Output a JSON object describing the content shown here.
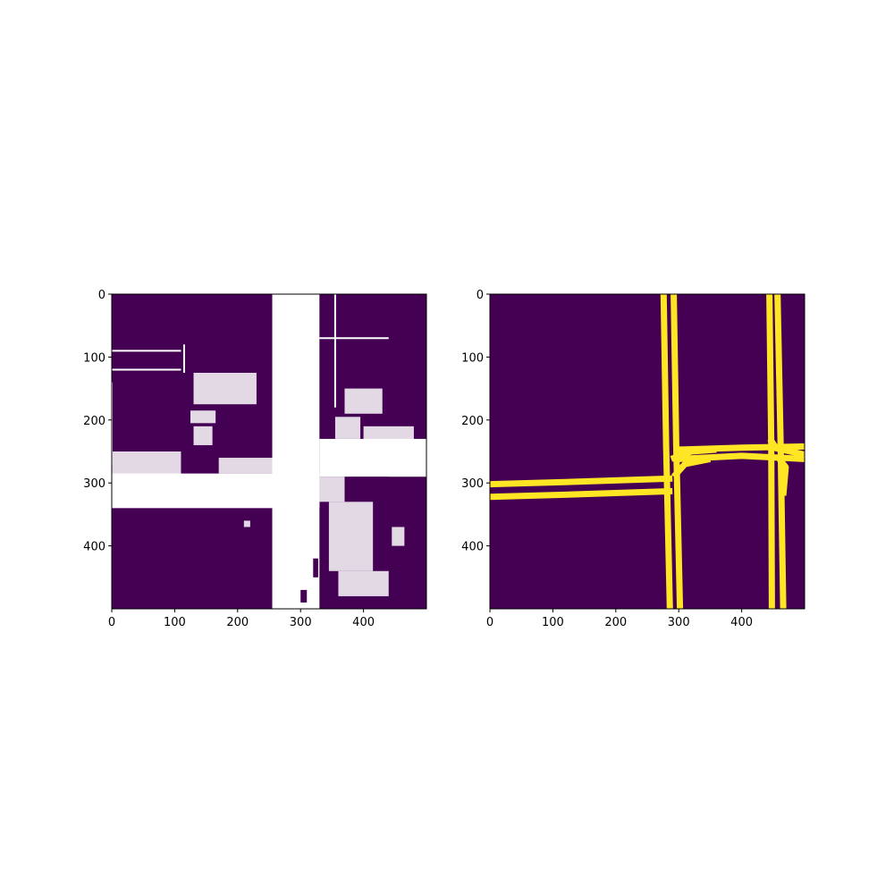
{
  "figure": {
    "background": "#ffffff",
    "colors": {
      "viridis_low": "#440154",
      "viridis_high": "#fde725",
      "mask_white": "#ffffff",
      "axis": "#000000"
    }
  },
  "chart_data": [
    {
      "type": "heatmap",
      "subtype": "binary image (imshow)",
      "title": "",
      "xlabel": "",
      "ylabel": "",
      "image_size": [
        500,
        500
      ],
      "xlim": [
        0,
        500
      ],
      "ylim": [
        500,
        0
      ],
      "y_axis_inverted": true,
      "x_ticks": [
        0,
        100,
        200,
        300,
        400
      ],
      "y_ticks": [
        0,
        100,
        200,
        300,
        400
      ],
      "grid": false,
      "colormap": [
        "#440154",
        "#ffffff"
      ],
      "description_of_regions": "white = drivable surface mask, purple = background",
      "regions": {
        "main_vertical_road": {
          "x": [
            255,
            330
          ],
          "y": [
            0,
            500
          ]
        },
        "left_horizontal_road": {
          "x": [
            0,
            330
          ],
          "y": [
            285,
            340
          ]
        },
        "right_horizontal_band": {
          "x": [
            330,
            500
          ],
          "y": [
            230,
            290
          ]
        },
        "left_upper_block": {
          "x": [
            0,
            110
          ],
          "y": [
            125,
            270
          ]
        },
        "lower_left_block": {
          "x": [
            0,
            255
          ],
          "y": [
            340,
            500
          ]
        },
        "lower_right_block": {
          "x": [
            330,
            500
          ],
          "y": [
            330,
            500
          ]
        }
      }
    },
    {
      "type": "heatmap",
      "subtype": "binary lane mask (imshow, viridis)",
      "title": "",
      "xlabel": "",
      "ylabel": "",
      "image_size": [
        500,
        500
      ],
      "xlim": [
        0,
        500
      ],
      "ylim": [
        500,
        0
      ],
      "y_axis_inverted": true,
      "x_ticks": [
        0,
        100,
        200,
        300,
        400
      ],
      "y_ticks": [
        0,
        100,
        200,
        300,
        400
      ],
      "grid": false,
      "colormap": [
        "#440154",
        "#fde725"
      ],
      "lanes": [
        {
          "name": "vertical-lane-1a",
          "points": [
            [
              276,
              0
            ],
            [
              280,
              240
            ],
            [
              286,
              500
            ]
          ]
        },
        {
          "name": "vertical-lane-1b",
          "points": [
            [
              292,
              0
            ],
            [
              296,
              240
            ],
            [
              302,
              500
            ]
          ]
        },
        {
          "name": "vertical-lane-2a",
          "points": [
            [
              444,
              0
            ],
            [
              447,
              240
            ],
            [
              448,
              500
            ]
          ]
        },
        {
          "name": "vertical-lane-2b",
          "points": [
            [
              457,
              0
            ],
            [
              462,
              240
            ],
            [
              466,
              500
            ]
          ]
        },
        {
          "name": "horizontal-lane-left-a",
          "points": [
            [
              0,
              302
            ],
            [
              140,
              298
            ],
            [
              290,
              293
            ]
          ]
        },
        {
          "name": "horizontal-lane-left-b",
          "points": [
            [
              0,
              322
            ],
            [
              140,
              318
            ],
            [
              290,
              313
            ]
          ]
        },
        {
          "name": "horizontal-lane-right-a",
          "points": [
            [
              300,
              247
            ],
            [
              400,
              244
            ],
            [
              500,
              242
            ]
          ]
        },
        {
          "name": "horizontal-lane-right-b",
          "points": [
            [
              300,
              262
            ],
            [
              400,
              257
            ],
            [
              500,
              262
            ]
          ]
        },
        {
          "name": "connector-upper",
          "points": [
            [
              288,
              262
            ],
            [
              320,
              250
            ],
            [
              360,
              247
            ]
          ]
        },
        {
          "name": "connector-lower",
          "points": [
            [
              292,
              290
            ],
            [
              310,
              270
            ],
            [
              350,
              262
            ]
          ]
        },
        {
          "name": "connector-right-a",
          "points": [
            [
              445,
              230
            ],
            [
              455,
              245
            ],
            [
              500,
              255
            ]
          ]
        },
        {
          "name": "connector-right-b",
          "points": [
            [
              460,
              262
            ],
            [
              470,
              275
            ],
            [
              466,
              320
            ]
          ]
        }
      ]
    }
  ]
}
